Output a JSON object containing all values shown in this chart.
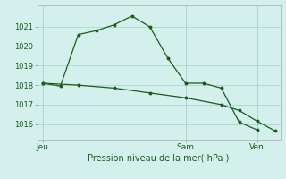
{
  "bg_color": "#d4f0ec",
  "grid_color": "#a8d8d0",
  "line_color": "#1a5c1a",
  "xlabel": "Pression niveau de la mer( hPa )",
  "yticks": [
    1016,
    1017,
    1018,
    1019,
    1020,
    1021
  ],
  "ylim": [
    1015.2,
    1022.1
  ],
  "xlim": [
    -0.3,
    13.3
  ],
  "xtick_labels": [
    "Jeu",
    "Sam",
    "Ven"
  ],
  "xtick_positions": [
    0,
    8,
    12
  ],
  "vline_positions": [
    0,
    8,
    12
  ],
  "line1_x": [
    0,
    1,
    2,
    3,
    4,
    5,
    6,
    7,
    8,
    9,
    10,
    11,
    12
  ],
  "line1_y": [
    1018.1,
    1017.95,
    1020.6,
    1020.8,
    1021.1,
    1021.55,
    1021.0,
    1019.4,
    1018.1,
    1018.1,
    1017.85,
    1016.1,
    1015.7
  ],
  "line2_x": [
    0,
    2,
    4,
    6,
    8,
    10,
    11,
    12,
    13
  ],
  "line2_y": [
    1018.1,
    1018.0,
    1017.85,
    1017.6,
    1017.35,
    1017.0,
    1016.7,
    1016.15,
    1015.65
  ],
  "ytick_fontsize": 6,
  "xtick_fontsize": 6.5,
  "xlabel_fontsize": 7
}
